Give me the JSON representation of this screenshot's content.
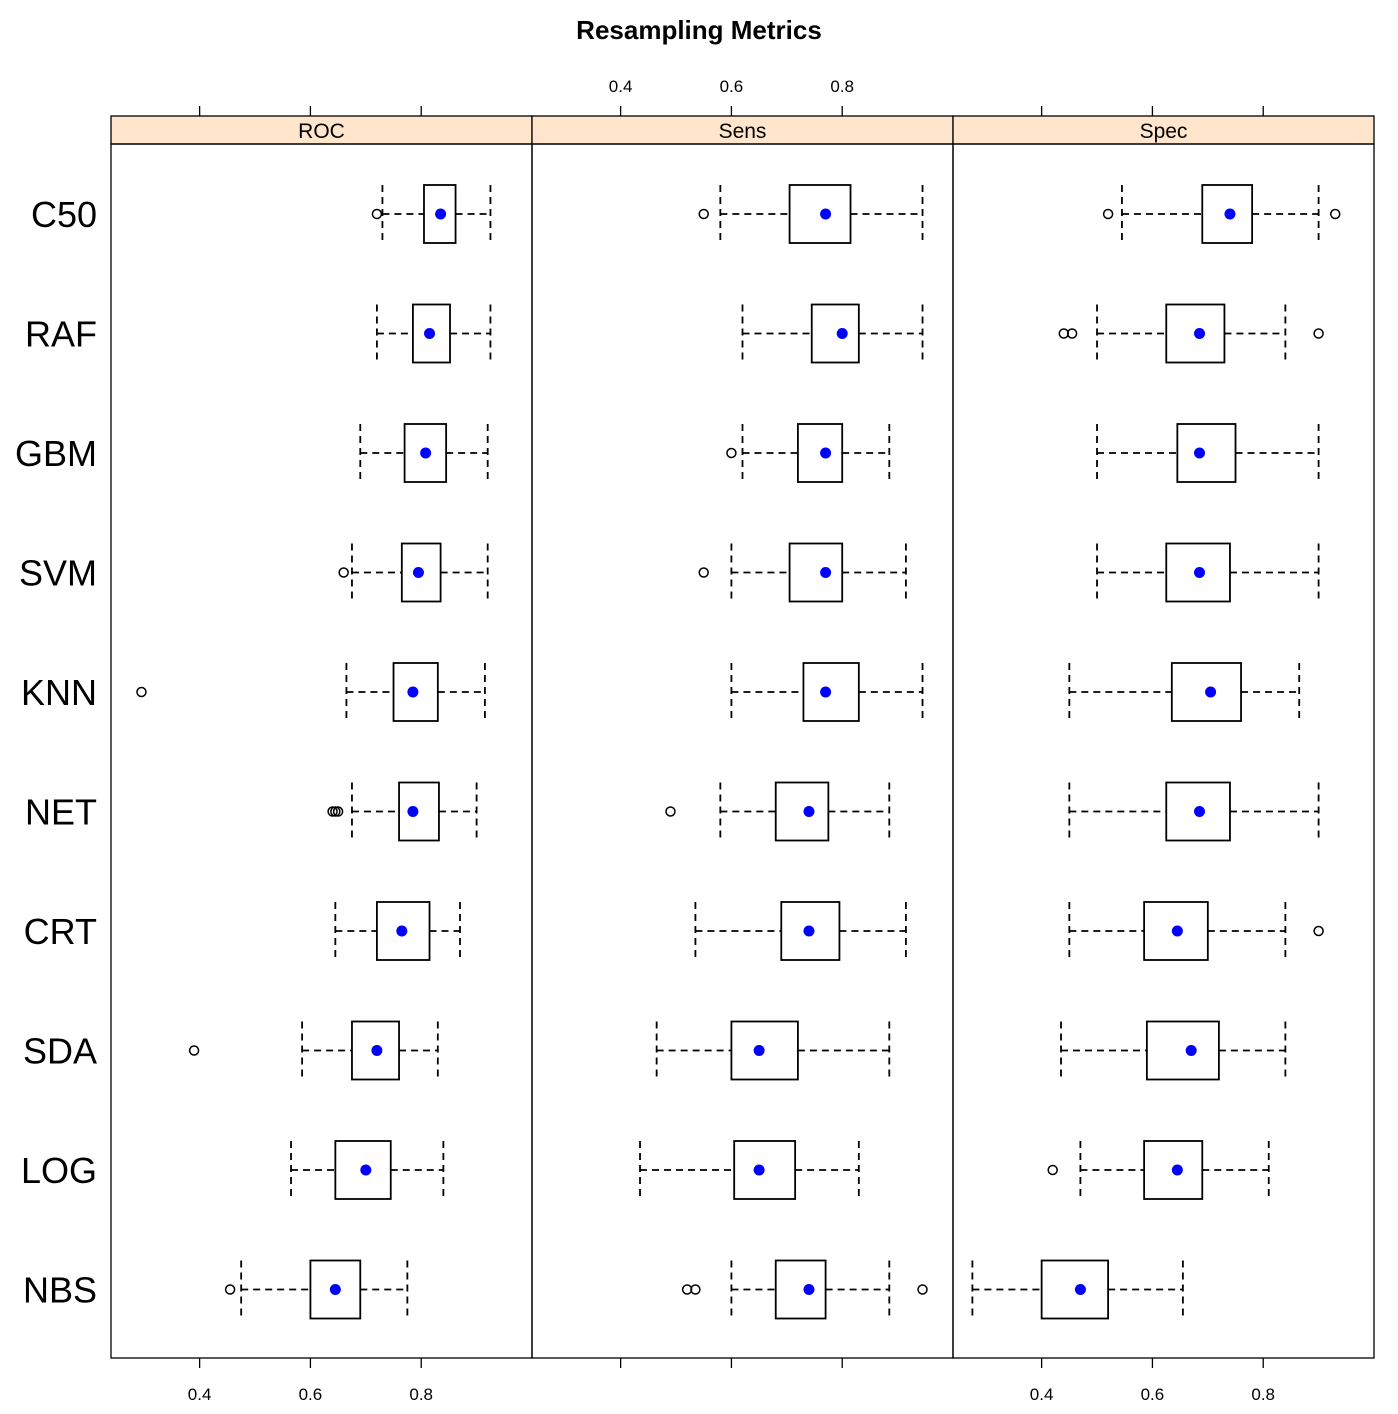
{
  "chart_data": {
    "type": "box",
    "title": "Resampling Metrics",
    "categories": [
      "C50",
      "RAF",
      "GBM",
      "SVM",
      "KNN",
      "NET",
      "CRT",
      "SDA",
      "LOG",
      "NBS"
    ],
    "xlim": [
      0.24,
      1.0
    ],
    "ticks": [
      0.4,
      0.6,
      0.8
    ],
    "tick_labels": [
      "0.4",
      "0.6",
      "0.8"
    ],
    "panels": [
      {
        "name": "ROC",
        "stats": {
          "C50": {
            "lw": 0.73,
            "q1": 0.805,
            "med": 0.835,
            "q3": 0.862,
            "uw": 0.925,
            "out": [
              0.72
            ]
          },
          "RAF": {
            "lw": 0.72,
            "q1": 0.785,
            "med": 0.815,
            "q3": 0.852,
            "uw": 0.925,
            "out": []
          },
          "GBM": {
            "lw": 0.69,
            "q1": 0.77,
            "med": 0.808,
            "q3": 0.845,
            "uw": 0.92,
            "out": []
          },
          "SVM": {
            "lw": 0.675,
            "q1": 0.765,
            "med": 0.795,
            "q3": 0.835,
            "uw": 0.92,
            "out": [
              0.66
            ]
          },
          "KNN": {
            "lw": 0.665,
            "q1": 0.75,
            "med": 0.785,
            "q3": 0.83,
            "uw": 0.915,
            "out": [
              0.295
            ]
          },
          "NET": {
            "lw": 0.675,
            "q1": 0.76,
            "med": 0.785,
            "q3": 0.832,
            "uw": 0.9,
            "out": [
              0.64,
              0.645,
              0.65
            ]
          },
          "CRT": {
            "lw": 0.645,
            "q1": 0.72,
            "med": 0.765,
            "q3": 0.815,
            "uw": 0.87,
            "out": []
          },
          "SDA": {
            "lw": 0.585,
            "q1": 0.675,
            "med": 0.72,
            "q3": 0.76,
            "uw": 0.83,
            "out": [
              0.39
            ]
          },
          "LOG": {
            "lw": 0.565,
            "q1": 0.645,
            "med": 0.7,
            "q3": 0.745,
            "uw": 0.84,
            "out": []
          },
          "NBS": {
            "lw": 0.475,
            "q1": 0.6,
            "med": 0.645,
            "q3": 0.69,
            "uw": 0.775,
            "out": [
              0.455
            ]
          }
        }
      },
      {
        "name": "Sens",
        "stats": {
          "C50": {
            "lw": 0.58,
            "q1": 0.705,
            "med": 0.77,
            "q3": 0.815,
            "uw": 0.945,
            "out": [
              0.55
            ]
          },
          "RAF": {
            "lw": 0.62,
            "q1": 0.745,
            "med": 0.8,
            "q3": 0.83,
            "uw": 0.945,
            "out": []
          },
          "GBM": {
            "lw": 0.62,
            "q1": 0.72,
            "med": 0.77,
            "q3": 0.8,
            "uw": 0.885,
            "out": [
              0.6
            ]
          },
          "SVM": {
            "lw": 0.6,
            "q1": 0.705,
            "med": 0.77,
            "q3": 0.8,
            "uw": 0.915,
            "out": [
              0.55
            ]
          },
          "KNN": {
            "lw": 0.6,
            "q1": 0.73,
            "med": 0.77,
            "q3": 0.83,
            "uw": 0.945,
            "out": []
          },
          "NET": {
            "lw": 0.58,
            "q1": 0.68,
            "med": 0.74,
            "q3": 0.775,
            "uw": 0.885,
            "out": [
              0.49
            ]
          },
          "CRT": {
            "lw": 0.535,
            "q1": 0.69,
            "med": 0.74,
            "q3": 0.795,
            "uw": 0.915,
            "out": []
          },
          "SDA": {
            "lw": 0.465,
            "q1": 0.6,
            "med": 0.65,
            "q3": 0.72,
            "uw": 0.885,
            "out": []
          },
          "LOG": {
            "lw": 0.435,
            "q1": 0.605,
            "med": 0.65,
            "q3": 0.715,
            "uw": 0.83,
            "out": []
          },
          "NBS": {
            "lw": 0.6,
            "q1": 0.68,
            "med": 0.74,
            "q3": 0.77,
            "uw": 0.885,
            "out": [
              0.52,
              0.535,
              0.945
            ]
          }
        }
      },
      {
        "name": "Spec",
        "stats": {
          "C50": {
            "lw": 0.545,
            "q1": 0.69,
            "med": 0.74,
            "q3": 0.78,
            "uw": 0.9,
            "out": [
              0.52,
              0.93
            ]
          },
          "RAF": {
            "lw": 0.5,
            "q1": 0.625,
            "med": 0.685,
            "q3": 0.73,
            "uw": 0.84,
            "out": [
              0.44,
              0.455,
              0.9
            ]
          },
          "GBM": {
            "lw": 0.5,
            "q1": 0.645,
            "med": 0.685,
            "q3": 0.75,
            "uw": 0.9,
            "out": []
          },
          "SVM": {
            "lw": 0.5,
            "q1": 0.625,
            "med": 0.685,
            "q3": 0.74,
            "uw": 0.9,
            "out": []
          },
          "KNN": {
            "lw": 0.45,
            "q1": 0.635,
            "med": 0.705,
            "q3": 0.76,
            "uw": 0.865,
            "out": []
          },
          "NET": {
            "lw": 0.45,
            "q1": 0.625,
            "med": 0.685,
            "q3": 0.74,
            "uw": 0.9,
            "out": []
          },
          "CRT": {
            "lw": 0.45,
            "q1": 0.585,
            "med": 0.645,
            "q3": 0.7,
            "uw": 0.84,
            "out": [
              0.9
            ]
          },
          "SDA": {
            "lw": 0.435,
            "q1": 0.59,
            "med": 0.67,
            "q3": 0.72,
            "uw": 0.84,
            "out": []
          },
          "LOG": {
            "lw": 0.47,
            "q1": 0.585,
            "med": 0.645,
            "q3": 0.69,
            "uw": 0.81,
            "out": [
              0.42
            ]
          },
          "NBS": {
            "lw": 0.275,
            "q1": 0.4,
            "med": 0.47,
            "q3": 0.52,
            "uw": 0.655,
            "out": []
          }
        }
      }
    ],
    "colors": {
      "strip_bg": "#FFE5CC",
      "median_dot": "#0000FF",
      "box_stroke": "#000000"
    }
  }
}
